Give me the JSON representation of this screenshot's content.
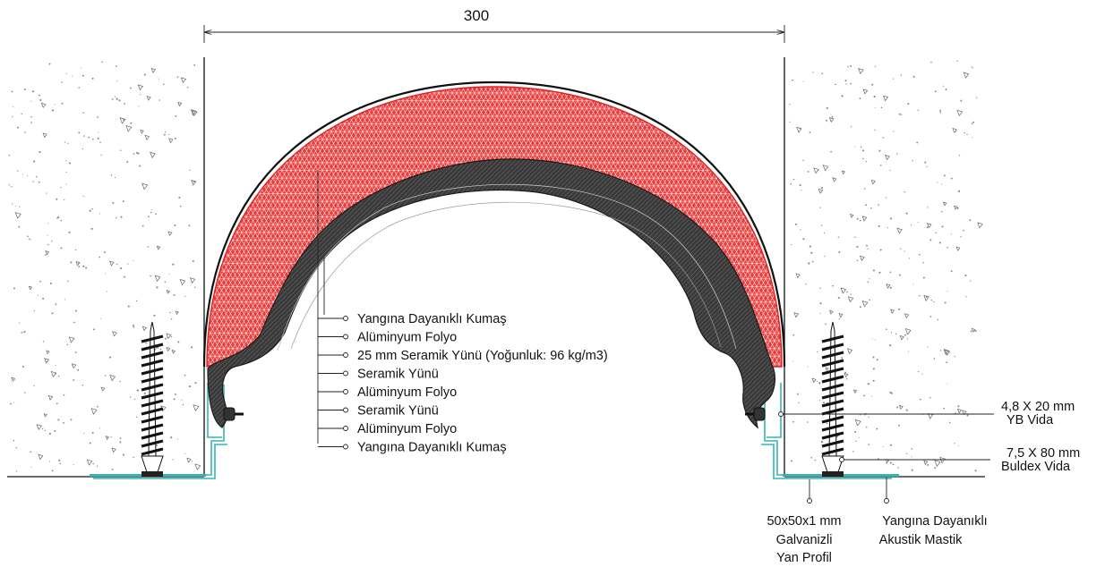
{
  "dimension": {
    "value": "300"
  },
  "layers": [
    "Yangına Dayanıklı Kumaş",
    "Alüminyum Folyo",
    "25 mm Seramik Yünü (Yoğunluk: 96 kg/m3)",
    "Seramik Yünü",
    "Alüminyum Folyo",
    "Seramik Yünü",
    "Alüminyum Folyo",
    "Yangına Dayanıklı Kumaş"
  ],
  "callouts": {
    "yb_screw": [
      "4,8 X 20 mm",
      "YB Vida"
    ],
    "buldex_screw": [
      "7,5 X 80 mm",
      "Buldex Vida"
    ],
    "side_profile": [
      "50x50x1 mm",
      "Galvanizli",
      "Yan Profil"
    ],
    "mastic": [
      "Yangına Dayanıklı",
      "Akustik Mastik"
    ]
  },
  "colors": {
    "fire_fabric_fill": "#ec3b3b",
    "fire_fabric_outline": "#e02020",
    "ceramic_wool": "#3b3b3b",
    "galvanized_profile": "#36b4b4",
    "concrete_speckle": "#888888",
    "line": "#111111"
  }
}
